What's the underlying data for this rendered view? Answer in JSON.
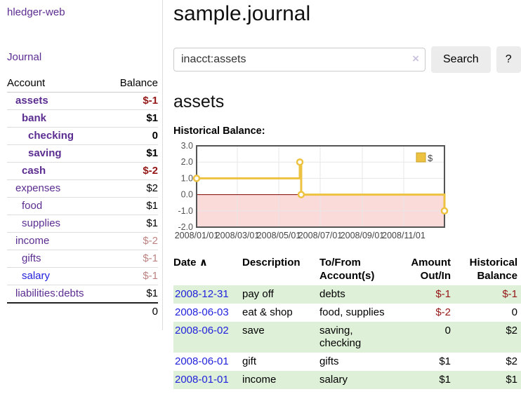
{
  "brand": "hledger-web",
  "sidebar": {
    "journal_link": "Journal",
    "accounts": {
      "headers": [
        "Account",
        "Balance"
      ],
      "rows": [
        {
          "name": "assets",
          "balance": "$-1",
          "indent": 1,
          "bold": true
        },
        {
          "name": "bank",
          "balance": "$1",
          "indent": 2,
          "bold": true
        },
        {
          "name": "checking",
          "balance": "0",
          "indent": 3,
          "bold": true
        },
        {
          "name": "saving",
          "balance": "$1",
          "indent": 3,
          "bold": true
        },
        {
          "name": "cash",
          "balance": "$-2",
          "indent": 2,
          "bold": true
        },
        {
          "name": "expenses",
          "balance": "$2",
          "indent": 1,
          "bold": false
        },
        {
          "name": "food",
          "balance": "$1",
          "indent": 2,
          "bold": false
        },
        {
          "name": "supplies",
          "balance": "$1",
          "indent": 2,
          "bold": false
        },
        {
          "name": "income",
          "balance": "$-2",
          "indent": 1,
          "bold": false
        },
        {
          "name": "gifts",
          "balance": "$-1",
          "indent": 2,
          "bold": false
        },
        {
          "name": "salary",
          "balance": "$-1",
          "indent": 2,
          "bold": false,
          "blue": true
        },
        {
          "name": "liabilities:debts",
          "balance": "$1",
          "indent": 1,
          "bold": false
        }
      ],
      "total": "0"
    }
  },
  "header": {
    "title": "sample.journal"
  },
  "search": {
    "value": "inacct:assets",
    "clear_icon": "×",
    "search_button": "Search",
    "help_button": "?"
  },
  "account_page": {
    "heading": "assets",
    "chart_label": "Historical Balance:"
  },
  "chart_data": {
    "type": "line",
    "title": "Historical Balance:",
    "step": true,
    "x_range": [
      "2008-01-01",
      "2008-12-31"
    ],
    "ylim": [
      -2.0,
      3.0
    ],
    "yticks": [
      3,
      2,
      1,
      0,
      -1,
      -2
    ],
    "xticks": [
      "2008/01/01",
      "2008/03/01",
      "2008/05/01",
      "2008/07/01",
      "2008/09/01",
      "2008/11/01"
    ],
    "series": [
      {
        "name": "$",
        "color": "#edc240",
        "points": [
          [
            "2008-01-01",
            1
          ],
          [
            "2008-06-01",
            2
          ],
          [
            "2008-06-03",
            0
          ],
          [
            "2008-12-31",
            -1
          ]
        ]
      }
    ],
    "legend": {
      "label": "$",
      "position": "top-right"
    },
    "zero_line_color": "#800000",
    "negative_region_color": "#fbdada",
    "grid": true
  },
  "register": {
    "headers": {
      "date": "Date",
      "sort_icon": "∧",
      "description": "Description",
      "accounts": "To/From Account(s)",
      "amount": "Amount Out/In",
      "balance": "Historical Balance"
    },
    "rows": [
      {
        "date": "2008-12-31",
        "description": "pay off",
        "accounts": "debts",
        "amount": "$-1",
        "balance": "$-1"
      },
      {
        "date": "2008-06-03",
        "description": "eat & shop",
        "accounts": "food, supplies",
        "amount": "$-2",
        "balance": "0"
      },
      {
        "date": "2008-06-02",
        "description": "save",
        "accounts": "saving,\nchecking",
        "amount": "0",
        "balance": "$2"
      },
      {
        "date": "2008-06-01",
        "description": "gift",
        "accounts": "gifts",
        "amount": "$1",
        "balance": "$2"
      },
      {
        "date": "2008-01-01",
        "description": "income",
        "accounts": "salary",
        "amount": "$1",
        "balance": "$1"
      }
    ]
  },
  "colors": {
    "link_purple": "#5c2d91",
    "link_blue": "#2222dd",
    "negative_strong": "#941616",
    "negative_muted": "#bd8282",
    "row_stripe_green": "#dff0d8",
    "series_gold": "#edc240",
    "chart_border_gray": "#545454"
  }
}
